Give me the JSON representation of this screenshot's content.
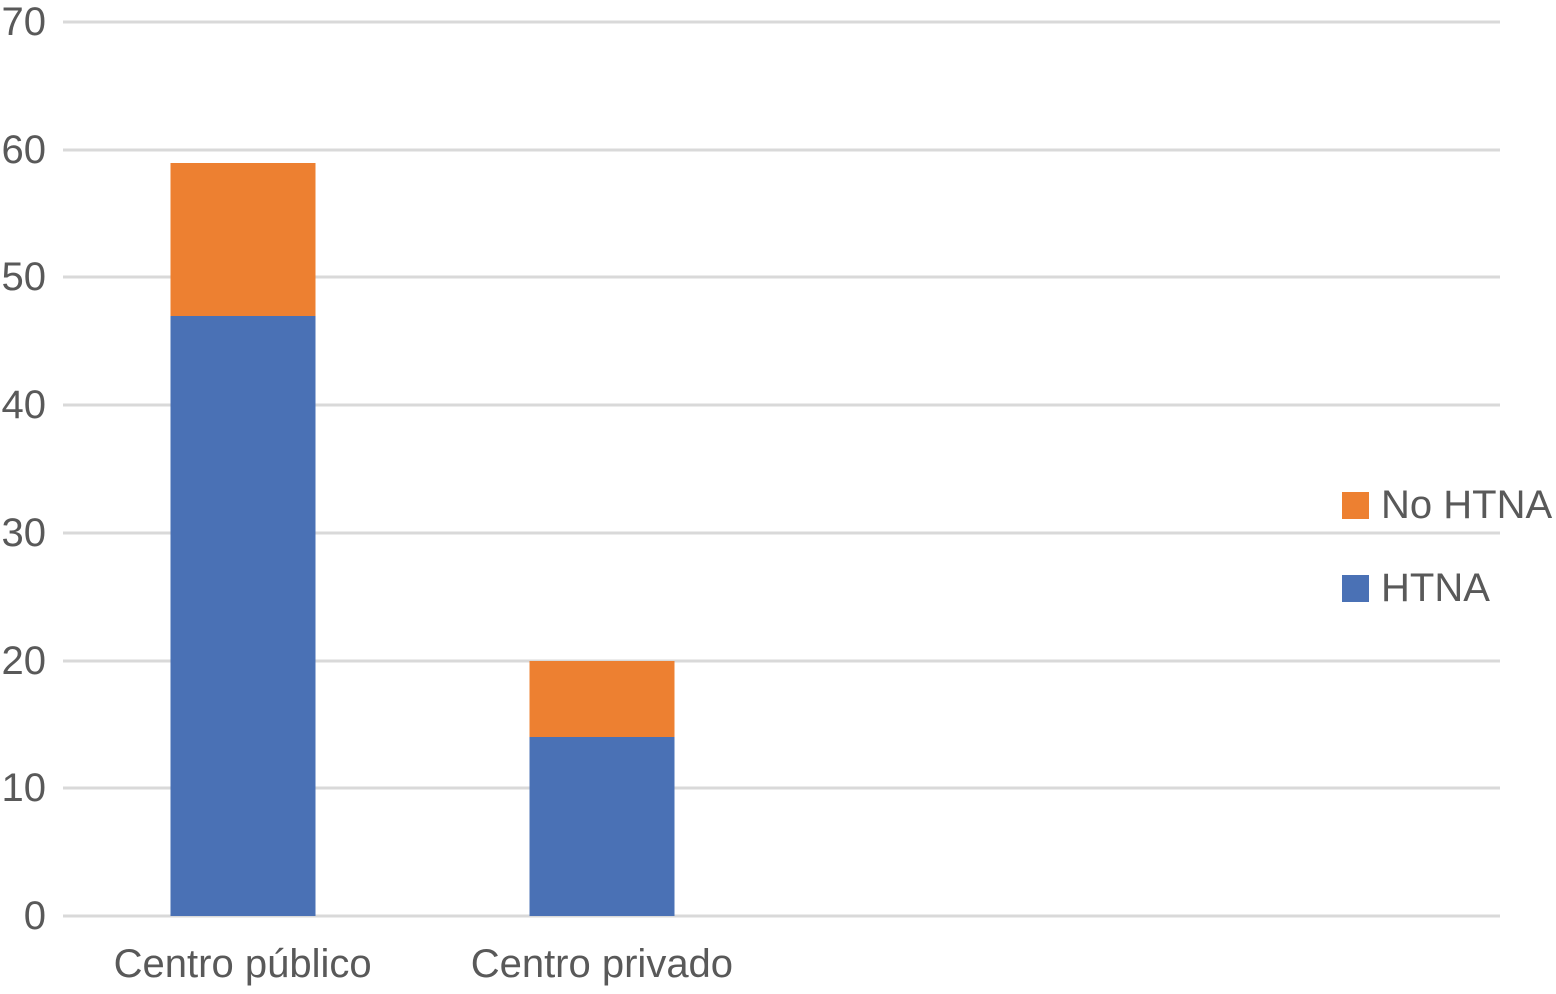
{
  "colors": {
    "background": "#FFFFFF",
    "grid": "#D9D9D9",
    "text": "#595959",
    "htna_blue": "#4A71B5",
    "no_htna_orange": "#ED8031"
  },
  "chart_data": {
    "type": "bar",
    "stacked": true,
    "title": "",
    "xlabel": "",
    "ylabel": "",
    "categories": [
      "Centro público",
      "Centro privado"
    ],
    "series": [
      {
        "name": "HTNA",
        "color": "#4A71B5",
        "values": [
          47,
          14
        ]
      },
      {
        "name": "No HTNA",
        "color": "#ED8031",
        "values": [
          12,
          6
        ]
      }
    ],
    "totals": [
      59,
      20
    ],
    "ylim": [
      0,
      70
    ],
    "y_ticks": [
      0,
      10,
      20,
      30,
      40,
      50,
      60,
      70
    ],
    "grid": true,
    "legend": {
      "position": "right",
      "entries": [
        "No HTNA",
        "HTNA"
      ]
    },
    "category_slot_count": 4
  }
}
